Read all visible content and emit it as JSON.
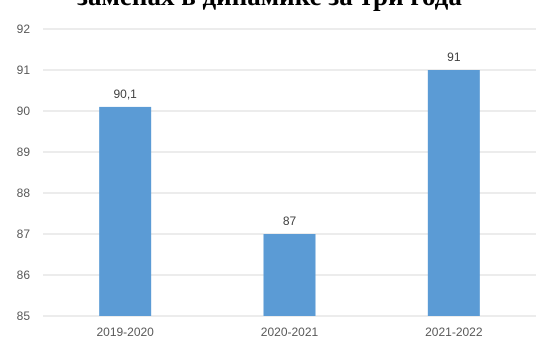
{
  "chart_data": {
    "type": "bar",
    "title": "заменах в динамике за три года",
    "categories": [
      "2019-2020",
      "2020-2021",
      "2021-2022"
    ],
    "values": [
      90.1,
      87,
      91
    ],
    "data_labels": [
      "90,1",
      "87",
      "91"
    ],
    "ylim": [
      85,
      92
    ],
    "yticks": [
      "85",
      "86",
      "87",
      "88",
      "89",
      "90",
      "91",
      "92"
    ],
    "xlabel": "",
    "ylabel": "",
    "grid": true,
    "legend": "none",
    "bar_color": "#5b9bd5",
    "grid_color": "#d9d9d9"
  }
}
